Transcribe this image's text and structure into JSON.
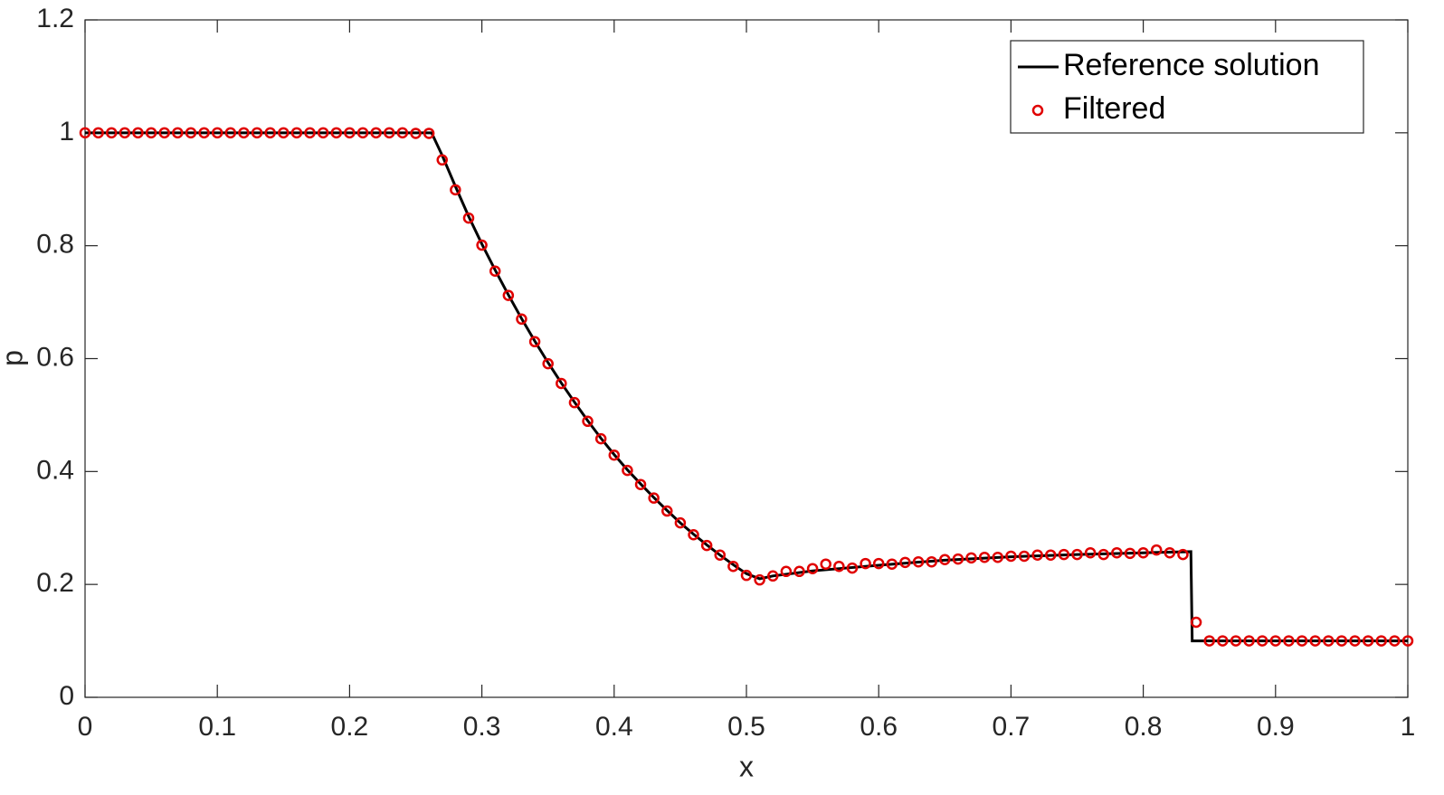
{
  "chart_data": {
    "type": "line",
    "xlabel": "x",
    "ylabel": "p",
    "xlim": [
      0,
      1
    ],
    "ylim": [
      0,
      1.2
    ],
    "xticks": [
      0,
      0.1,
      0.2,
      0.3,
      0.4,
      0.5,
      0.6,
      0.7,
      0.8,
      0.9,
      1
    ],
    "yticks": [
      0,
      0.2,
      0.4,
      0.6,
      0.8,
      1,
      1.2
    ],
    "legend": "upper right",
    "series": [
      {
        "name": "Reference solution",
        "color": "#000000",
        "style": "line",
        "x": [
          0,
          0.262,
          0.27,
          0.28,
          0.29,
          0.3,
          0.31,
          0.32,
          0.33,
          0.34,
          0.35,
          0.36,
          0.37,
          0.38,
          0.39,
          0.4,
          0.41,
          0.42,
          0.43,
          0.44,
          0.45,
          0.46,
          0.47,
          0.48,
          0.49,
          0.5,
          0.51,
          0.52,
          0.55,
          0.6,
          0.65,
          0.7,
          0.75,
          0.8,
          0.836,
          0.837,
          1
        ],
        "values": [
          1,
          1,
          0.96,
          0.905,
          0.852,
          0.803,
          0.757,
          0.713,
          0.671,
          0.631,
          0.593,
          0.557,
          0.523,
          0.49,
          0.459,
          0.43,
          0.403,
          0.378,
          0.354,
          0.331,
          0.309,
          0.289,
          0.27,
          0.252,
          0.235,
          0.219,
          0.21,
          0.215,
          0.224,
          0.234,
          0.243,
          0.249,
          0.253,
          0.256,
          0.258,
          0.1,
          0.1
        ]
      },
      {
        "name": "Filtered",
        "color": "#e00000",
        "style": "marker",
        "x": [
          0,
          0.01,
          0.02,
          0.03,
          0.04,
          0.05,
          0.06,
          0.07,
          0.08,
          0.09,
          0.1,
          0.11,
          0.12,
          0.13,
          0.14,
          0.15,
          0.16,
          0.17,
          0.18,
          0.19,
          0.2,
          0.21,
          0.22,
          0.23,
          0.24,
          0.25,
          0.26,
          0.27,
          0.28,
          0.29,
          0.3,
          0.31,
          0.32,
          0.33,
          0.34,
          0.35,
          0.36,
          0.37,
          0.38,
          0.39,
          0.4,
          0.41,
          0.42,
          0.43,
          0.44,
          0.45,
          0.46,
          0.47,
          0.48,
          0.49,
          0.5,
          0.51,
          0.52,
          0.53,
          0.54,
          0.55,
          0.56,
          0.57,
          0.58,
          0.59,
          0.6,
          0.61,
          0.62,
          0.63,
          0.64,
          0.65,
          0.66,
          0.67,
          0.68,
          0.69,
          0.7,
          0.71,
          0.72,
          0.73,
          0.74,
          0.75,
          0.76,
          0.77,
          0.78,
          0.79,
          0.8,
          0.81,
          0.82,
          0.83,
          0.84,
          0.85,
          0.86,
          0.87,
          0.88,
          0.89,
          0.9,
          0.91,
          0.92,
          0.93,
          0.94,
          0.95,
          0.96,
          0.97,
          0.98,
          0.99,
          1
        ],
        "values": [
          1,
          1,
          1,
          1,
          1,
          1,
          1,
          1,
          1,
          1,
          1,
          1,
          1,
          1,
          1,
          1,
          1,
          1,
          1,
          1,
          1,
          1,
          1,
          1,
          1,
          0.999,
          0.999,
          0.952,
          0.899,
          0.849,
          0.801,
          0.755,
          0.712,
          0.67,
          0.63,
          0.591,
          0.556,
          0.522,
          0.489,
          0.458,
          0.429,
          0.402,
          0.377,
          0.353,
          0.33,
          0.309,
          0.288,
          0.269,
          0.252,
          0.232,
          0.216,
          0.208,
          0.215,
          0.223,
          0.223,
          0.228,
          0.236,
          0.232,
          0.229,
          0.237,
          0.237,
          0.236,
          0.239,
          0.24,
          0.24,
          0.244,
          0.245,
          0.247,
          0.248,
          0.248,
          0.25,
          0.25,
          0.252,
          0.252,
          0.253,
          0.253,
          0.256,
          0.253,
          0.256,
          0.255,
          0.256,
          0.261,
          0.256,
          0.253,
          0.133,
          0.1,
          0.1,
          0.1,
          0.1,
          0.1,
          0.1,
          0.1,
          0.1,
          0.1,
          0.1,
          0.1,
          0.1,
          0.1,
          0.1,
          0.1,
          0.1
        ]
      }
    ]
  }
}
